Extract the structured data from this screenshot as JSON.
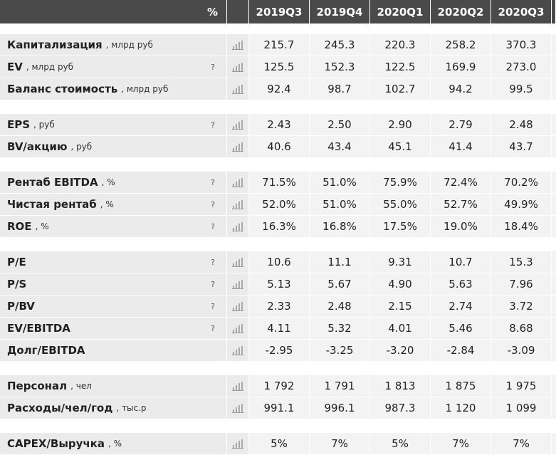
{
  "header": {
    "unit": "%",
    "periods": [
      "2019Q3",
      "2019Q4",
      "2020Q1",
      "2020Q2",
      "2020Q3"
    ]
  },
  "groups": [
    {
      "rows": [
        {
          "label": "Капитализация",
          "unit": ", млрд руб",
          "help": "",
          "values": [
            "215.7",
            "245.3",
            "220.3",
            "258.2",
            "370.3"
          ]
        },
        {
          "label": "EV",
          "unit": ", млрд руб",
          "help": "?",
          "values": [
            "125.5",
            "152.3",
            "122.5",
            "169.9",
            "273.0"
          ]
        },
        {
          "label": "Баланс стоимость",
          "unit": ", млрд руб",
          "help": "",
          "values": [
            "92.4",
            "98.7",
            "102.7",
            "94.2",
            "99.5"
          ]
        }
      ]
    },
    {
      "rows": [
        {
          "label": "EPS",
          "unit": ", руб",
          "help": "?",
          "values": [
            "2.43",
            "2.50",
            "2.90",
            "2.79",
            "2.48"
          ]
        },
        {
          "label": "BV/акцию",
          "unit": ", руб",
          "help": "",
          "values": [
            "40.6",
            "43.4",
            "45.1",
            "41.4",
            "43.7"
          ]
        }
      ]
    },
    {
      "rows": [
        {
          "label": "Рентаб EBITDA",
          "unit": ", %",
          "help": "?",
          "values": [
            "71.5%",
            "51.0%",
            "75.9%",
            "72.4%",
            "70.2%"
          ]
        },
        {
          "label": "Чистая рентаб",
          "unit": ", %",
          "help": "?",
          "values": [
            "52.0%",
            "51.0%",
            "55.0%",
            "52.7%",
            "49.9%"
          ]
        },
        {
          "label": "ROE",
          "unit": ", %",
          "help": "?",
          "values": [
            "16.3%",
            "16.8%",
            "17.5%",
            "19.0%",
            "18.4%"
          ]
        }
      ]
    },
    {
      "rows": [
        {
          "label": "P/E",
          "unit": "",
          "help": "?",
          "values": [
            "10.6",
            "11.1",
            "9.31",
            "10.7",
            "15.3"
          ]
        },
        {
          "label": "P/S",
          "unit": "",
          "help": "?",
          "values": [
            "5.13",
            "5.67",
            "4.90",
            "5.63",
            "7.96"
          ]
        },
        {
          "label": "P/BV",
          "unit": "",
          "help": "?",
          "values": [
            "2.33",
            "2.48",
            "2.15",
            "2.74",
            "3.72"
          ]
        },
        {
          "label": "EV/EBITDA",
          "unit": "",
          "help": "?",
          "values": [
            "4.11",
            "5.32",
            "4.01",
            "5.46",
            "8.68"
          ]
        },
        {
          "label": "Долг/EBITDA",
          "unit": "",
          "help": "",
          "values": [
            "-2.95",
            "-3.25",
            "-3.20",
            "-2.84",
            "-3.09"
          ]
        }
      ]
    },
    {
      "rows": [
        {
          "label": "Персонал",
          "unit": ", чел",
          "help": "",
          "values": [
            "1 792",
            "1 791",
            "1 813",
            "1 875",
            "1 975"
          ]
        },
        {
          "label": "Расходы/чел/год",
          "unit": ", тыс.р",
          "help": "",
          "values": [
            "991.1",
            "996.1",
            "987.3",
            "1 120",
            "1 099"
          ]
        }
      ]
    },
    {
      "rows": [
        {
          "label": "CAPEX/Выручка",
          "unit": ", %",
          "help": "",
          "values": [
            "5%",
            "7%",
            "5%",
            "7%",
            "7%"
          ]
        }
      ]
    }
  ],
  "icons": {
    "chart": "bar-chart-icon",
    "help": "help-icon"
  }
}
